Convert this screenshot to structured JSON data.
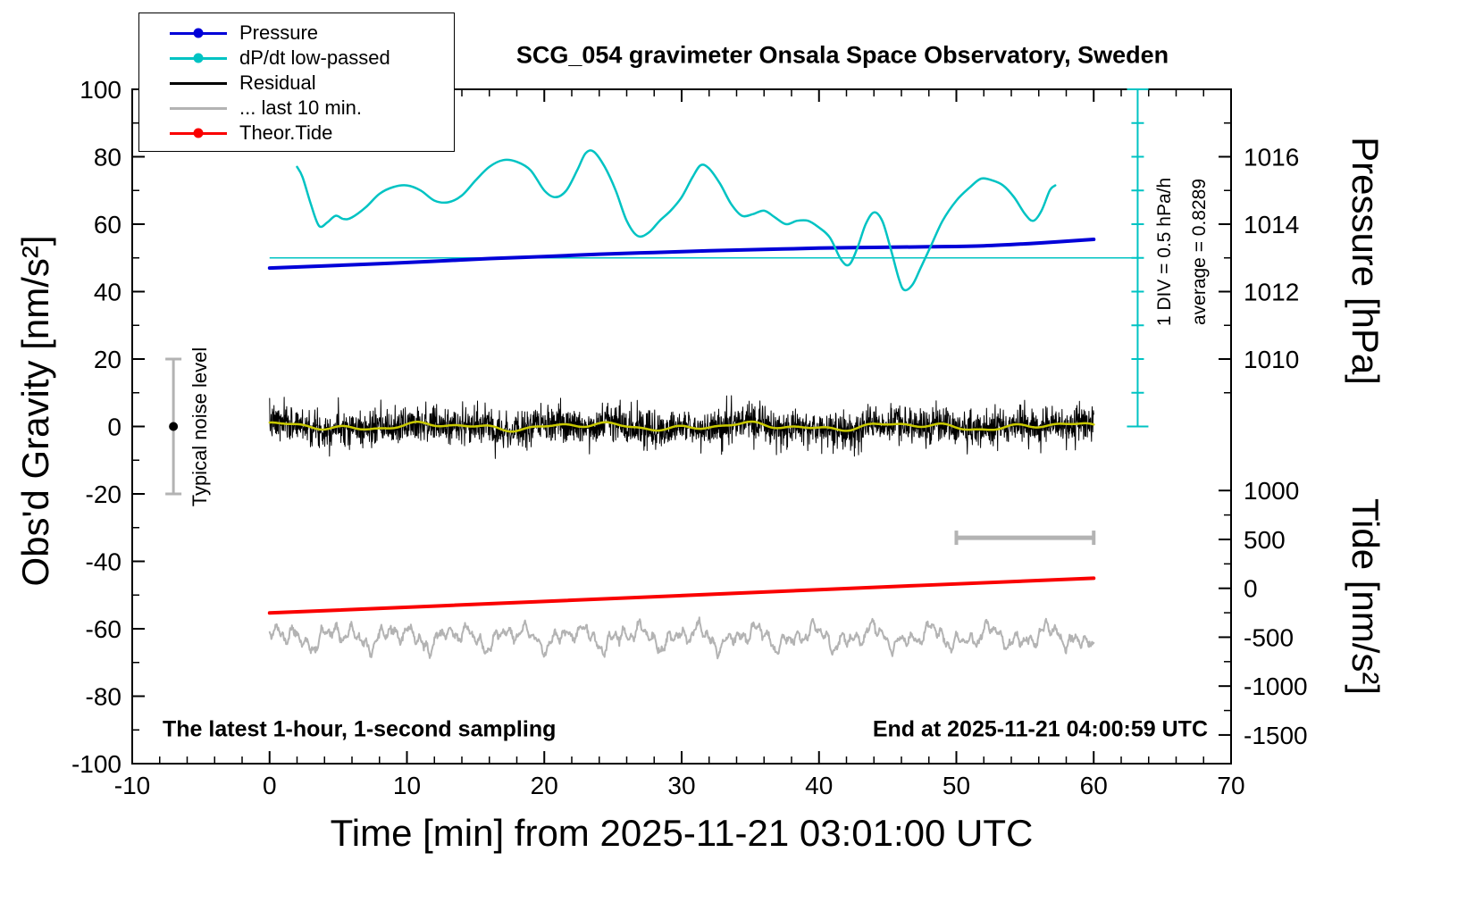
{
  "chart_data": {
    "type": "line",
    "title": "SCG_054 gravimeter Onsala Space Observatory, Sweden",
    "xlabel": "Time [min] from 2025-11-21 03:01:00 UTC",
    "ylabel_left": "Obs'd Gravity [nm/s²]",
    "ylabel_pressure": "Pressure [hPa]",
    "ylabel_tide": "Tide [nm/s²]",
    "xlim": [
      -10,
      70
    ],
    "ylim": [
      -100,
      100
    ],
    "x_ticks": {
      "major": [
        -10,
        0,
        10,
        20,
        30,
        40,
        50,
        60,
        70
      ],
      "minor_step": 2
    },
    "y_ticks": {
      "major": [
        -100,
        -80,
        -60,
        -40,
        -20,
        0,
        20,
        40,
        60,
        80,
        100
      ],
      "minor_step": 10
    },
    "pressure_axis": {
      "label_ticks": [
        {
          "label": "1016",
          "y": 80
        },
        {
          "label": "1014",
          "y": 60
        },
        {
          "label": "1012",
          "y": 40
        },
        {
          "label": "1010",
          "y": 20
        }
      ],
      "major_y": [
        20,
        40,
        60,
        80,
        100
      ],
      "minor_y": [
        10,
        30,
        50,
        70,
        90
      ]
    },
    "tide_axis": {
      "label_ticks": [
        {
          "label": "1000",
          "y": -19
        },
        {
          "label": "500",
          "y": -33.5
        },
        {
          "label": "0",
          "y": -48
        },
        {
          "label": "-500",
          "y": -62.5
        },
        {
          "label": "-1000",
          "y": -77
        },
        {
          "label": "-1500",
          "y": -91.5
        }
      ]
    },
    "legend": [
      {
        "label": "Pressure",
        "color": "#0000d8",
        "marker": true
      },
      {
        "label": "dP/dt low-passed",
        "color": "#00c3c3",
        "marker": true
      },
      {
        "label": "Residual",
        "color": "#000000",
        "marker": false
      },
      {
        "label": "... last 10 min.",
        "color": "#b3b3b3",
        "marker": false
      },
      {
        "label": "Theor.Tide",
        "color": "#fa0000",
        "marker": true
      }
    ],
    "series": [
      {
        "name": "last-10-min",
        "label": "... last 10 min.",
        "color": "#b3b3b3",
        "width": 2,
        "generate": {
          "kind": "harmonics_noise",
          "x0": 0,
          "x1": 60,
          "n": 1400,
          "mean": -62.5,
          "std": 0.5,
          "seed": 11,
          "clip": [
            -70.5,
            -55.5
          ],
          "terms": [
            [
              2.0,
              1.46,
              0.5
            ],
            [
              1.6,
              2.99,
              1.7
            ],
            [
              1.3,
              5.98,
              4.0
            ],
            [
              1.0,
              11.42,
              2.6
            ]
          ]
        }
      },
      {
        "name": "theor-tide",
        "label": "Theor.Tide",
        "color": "#fa0000",
        "width": 4,
        "smooth": true,
        "points": [
          [
            0,
            -55.3
          ],
          [
            20,
            -51.9
          ],
          [
            40,
            -48.4
          ],
          [
            60,
            -45.0
          ]
        ]
      },
      {
        "name": "residual",
        "label": "Residual",
        "color": "#000000",
        "width": 1,
        "generate": {
          "kind": "harmonics_noise",
          "x0": 0,
          "x1": 60,
          "n": 2600,
          "mean": 0,
          "std": 2.6,
          "seed": 7,
          "clip": [
            -10.5,
            9.5
          ],
          "terms": [
            [
              0.7,
              0.55,
              1.3
            ],
            [
              0.5,
              1.3,
              0.4
            ],
            [
              0.35,
              2.3,
              2.1
            ]
          ]
        }
      },
      {
        "name": "residual-lowpassed",
        "label": "Residual low-passed",
        "color": "#c9c900",
        "width": 2.5,
        "generate": {
          "kind": "harmonics",
          "x0": 0,
          "x1": 60,
          "n": 600,
          "mean": 0,
          "terms": [
            [
              0.7,
              0.55,
              1.3
            ],
            [
              0.5,
              1.3,
              0.4
            ],
            [
              0.35,
              2.3,
              2.1
            ]
          ]
        }
      },
      {
        "name": "pressure",
        "label": "Pressure",
        "color": "#0000d8",
        "width": 4,
        "smooth": true,
        "points": [
          [
            0,
            47
          ],
          [
            4,
            47.6
          ],
          [
            8,
            48.3
          ],
          [
            12,
            49.0
          ],
          [
            16,
            49.8
          ],
          [
            20,
            50.4
          ],
          [
            24,
            51.1
          ],
          [
            28,
            51.6
          ],
          [
            32,
            52.1
          ],
          [
            36,
            52.5
          ],
          [
            40,
            52.9
          ],
          [
            44,
            53.1
          ],
          [
            48,
            53.3
          ],
          [
            52,
            53.6
          ],
          [
            56,
            54.4
          ],
          [
            60,
            55.5
          ]
        ]
      },
      {
        "name": "dpdt-lowpassed",
        "label": "dP/dt low-passed",
        "color": "#00c3c3",
        "width": 2.5,
        "smooth": true,
        "points": [
          [
            2,
            77
          ],
          [
            2.4,
            74
          ],
          [
            3,
            66
          ],
          [
            3.6,
            59.5
          ],
          [
            4.2,
            60.5
          ],
          [
            4.8,
            62.5
          ],
          [
            5.4,
            61.5
          ],
          [
            6,
            62
          ],
          [
            7,
            65
          ],
          [
            8,
            69
          ],
          [
            9,
            71
          ],
          [
            10,
            71.5
          ],
          [
            11,
            70
          ],
          [
            12,
            67
          ],
          [
            13,
            66.5
          ],
          [
            14,
            68.5
          ],
          [
            15,
            73
          ],
          [
            16,
            77
          ],
          [
            17,
            79
          ],
          [
            18,
            78.5
          ],
          [
            19,
            76
          ],
          [
            20,
            70
          ],
          [
            20.8,
            68
          ],
          [
            21.6,
            70
          ],
          [
            22.4,
            76
          ],
          [
            23,
            81
          ],
          [
            23.6,
            81.5
          ],
          [
            24.4,
            77
          ],
          [
            25.2,
            70
          ],
          [
            26,
            61
          ],
          [
            26.8,
            56.5
          ],
          [
            27.6,
            57.5
          ],
          [
            28.4,
            61
          ],
          [
            29.2,
            64
          ],
          [
            30,
            68
          ],
          [
            30.8,
            74
          ],
          [
            31.4,
            77.5
          ],
          [
            32,
            76.5
          ],
          [
            32.8,
            72
          ],
          [
            33.6,
            66
          ],
          [
            34.4,
            62.5
          ],
          [
            35.2,
            63
          ],
          [
            36,
            64
          ],
          [
            36.8,
            62
          ],
          [
            37.6,
            60
          ],
          [
            38.4,
            61
          ],
          [
            39.2,
            61
          ],
          [
            40,
            59
          ],
          [
            40.8,
            56
          ],
          [
            41.6,
            49.5
          ],
          [
            42.2,
            48
          ],
          [
            42.8,
            53
          ],
          [
            43.4,
            60
          ],
          [
            44,
            63.5
          ],
          [
            44.6,
            61
          ],
          [
            45.2,
            53
          ],
          [
            45.8,
            44
          ],
          [
            46.2,
            40.5
          ],
          [
            46.8,
            42
          ],
          [
            47.4,
            47
          ],
          [
            48.2,
            54
          ],
          [
            49,
            61
          ],
          [
            50,
            67
          ],
          [
            51,
            71
          ],
          [
            51.8,
            73.5
          ],
          [
            52.6,
            73
          ],
          [
            53.4,
            71.5
          ],
          [
            54.2,
            68
          ],
          [
            55,
            63
          ],
          [
            55.6,
            61
          ],
          [
            56.2,
            64
          ],
          [
            56.8,
            70
          ],
          [
            57.2,
            71.5
          ]
        ]
      }
    ],
    "annotations": {
      "typical_noise": {
        "x": -7,
        "y": 0,
        "half_height": 20,
        "label": "Typical noise level",
        "bar_color": "#b3b3b3",
        "dot_color": "#000000"
      },
      "ref_line": {
        "y": 50,
        "x0": 0,
        "x1": 63.2,
        "color": "#00c3c3"
      },
      "div_bar": {
        "x": 63.2,
        "y0": 0,
        "y1": 100,
        "tick_step": 10,
        "color": "#00c3c3",
        "label_div": "1 DIV = 0.5 hPa/h",
        "label_avg": "average = 0.8289"
      },
      "scale_bar": {
        "x0": 50,
        "x1": 60,
        "y": -33,
        "color": "#b3b3b3"
      },
      "bottom_left": "The latest 1-hour, 1-second sampling",
      "bottom_right": "End at 2025-11-21 04:00:59 UTC"
    }
  }
}
